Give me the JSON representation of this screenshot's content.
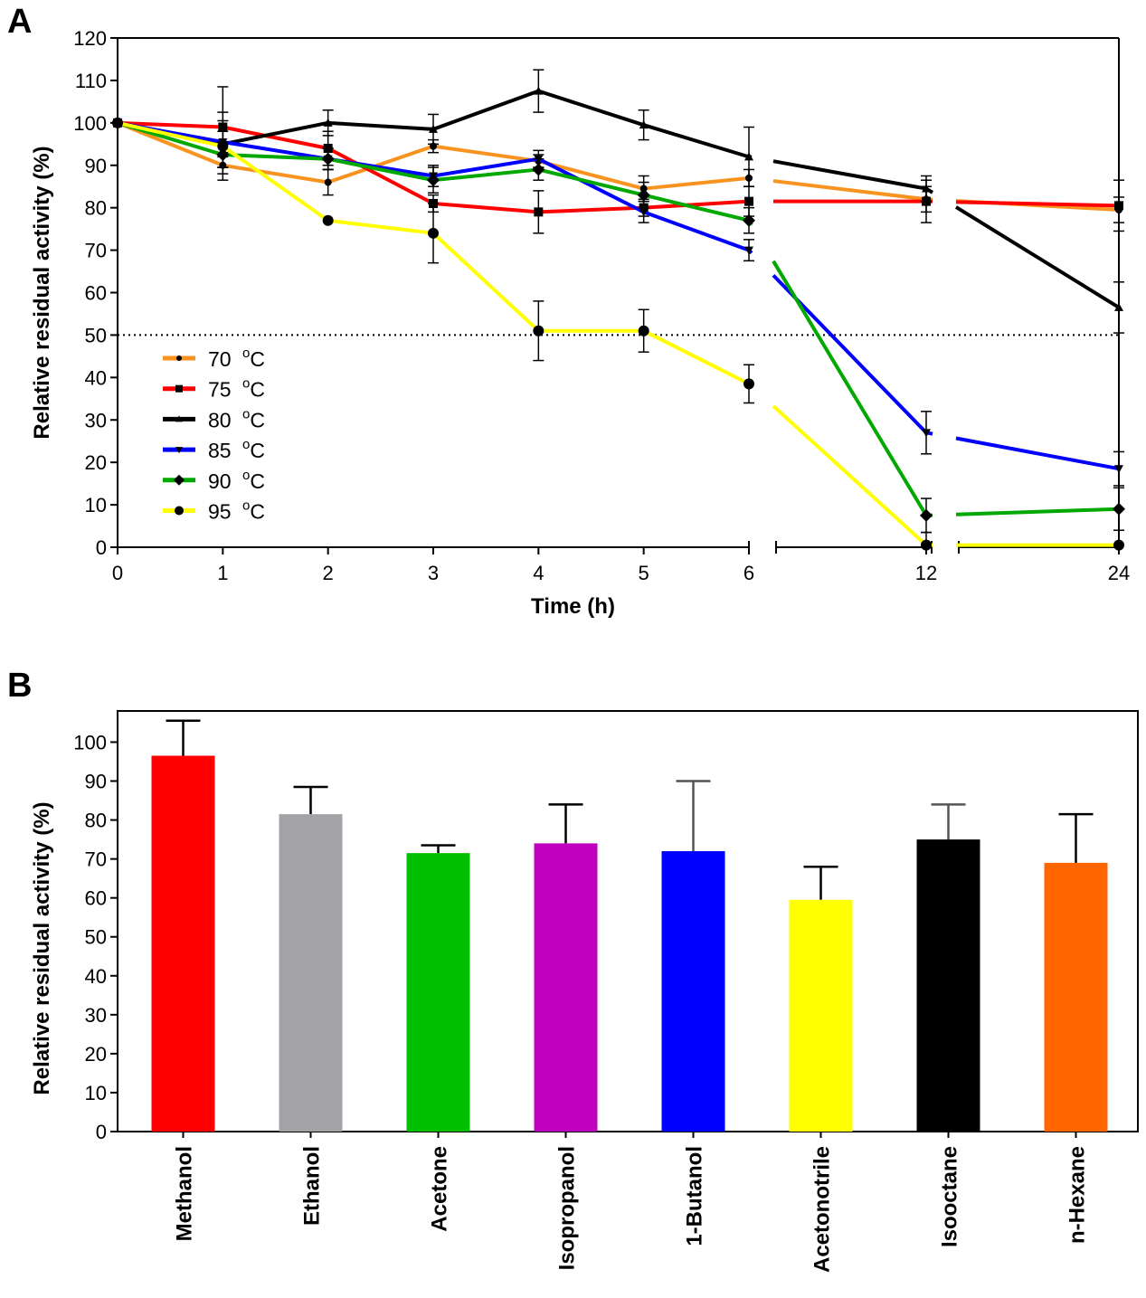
{
  "chart_data": [
    {
      "panel": "A",
      "type": "line",
      "title": "",
      "xlabel": "Time (h)",
      "ylabel": "Relative residual activity (%)",
      "x": [
        0,
        1,
        2,
        3,
        4,
        5,
        6,
        12,
        24
      ],
      "x_tick_labels": [
        "0",
        "1",
        "2",
        "3",
        "4",
        "5",
        "6",
        "12",
        "24"
      ],
      "ylim": [
        0,
        120
      ],
      "y_ticks": [
        0,
        10,
        20,
        30,
        40,
        50,
        60,
        70,
        80,
        90,
        100,
        110,
        120
      ],
      "reference_line": 50,
      "axis_breaks": [
        "6-12",
        "12-24"
      ],
      "legend_position": "bottom-left",
      "series": [
        {
          "name": "70 oC",
          "label": "70",
          "unit": "C",
          "unit_sup": "o",
          "color": "#F7931E",
          "marker": "hexagon",
          "values": [
            100,
            90,
            86,
            94.5,
            91,
            84.5,
            87,
            82,
            79.5
          ],
          "errors": [
            0,
            2,
            3,
            1.5,
            1.5,
            3,
            2,
            3,
            3
          ]
        },
        {
          "name": "75 oC",
          "label": "75",
          "unit": "C",
          "unit_sup": "o",
          "color": "#FF0000",
          "marker": "square",
          "values": [
            100,
            99,
            94,
            81,
            79,
            80,
            81.5,
            81.5,
            80.5
          ],
          "errors": [
            0,
            9.5,
            4,
            2,
            5,
            2,
            3.5,
            5,
            6
          ]
        },
        {
          "name": "80 oC",
          "label": "80",
          "unit": "C",
          "unit_sup": "o",
          "color": "#000000",
          "marker": "triangle-up",
          "values": [
            100,
            95,
            100,
            98.5,
            107.5,
            99.5,
            92,
            84.5,
            56.5
          ],
          "errors": [
            0,
            5.5,
            3,
            3.5,
            5,
            3.5,
            7,
            3,
            6
          ]
        },
        {
          "name": "85 oC",
          "label": "85",
          "unit": "C",
          "unit_sup": "o",
          "color": "#0000FF",
          "marker": "triangle-down",
          "values": [
            100,
            95.5,
            91.5,
            87.5,
            91.5,
            79,
            70,
            27,
            18.5
          ],
          "errors": [
            0,
            2.5,
            2.5,
            2.5,
            2,
            2.5,
            2.5,
            5,
            4
          ]
        },
        {
          "name": "90 oC",
          "label": "90",
          "unit": "C",
          "unit_sup": "o",
          "color": "#00A800",
          "marker": "diamond",
          "values": [
            100,
            92.5,
            91.5,
            86.5,
            89,
            83,
            77,
            7.5,
            9
          ],
          "errors": [
            0,
            3,
            2.5,
            3,
            2.5,
            3,
            3,
            4,
            5
          ]
        },
        {
          "name": "95 oC",
          "label": "95",
          "unit": "C",
          "unit_sup": "o",
          "color": "#FFFF00",
          "marker": "circle",
          "values": [
            100,
            94.5,
            77,
            74,
            51,
            51,
            38.5,
            0.5,
            0.5
          ],
          "errors": [
            0,
            8,
            0,
            7,
            7,
            5,
            4.5,
            3,
            0
          ]
        }
      ]
    },
    {
      "panel": "B",
      "type": "bar",
      "title": "",
      "xlabel": "",
      "ylabel": "Relative residual activity (%)",
      "ylim": [
        0,
        108
      ],
      "y_ticks": [
        0,
        10,
        20,
        30,
        40,
        50,
        60,
        70,
        80,
        90,
        100
      ],
      "categories": [
        "Methanol",
        "Ethanol",
        "Acetone",
        "Isopropanol",
        "1-Butanol",
        "Acetonotrile",
        "Isooctane",
        "n-Hexane"
      ],
      "values": [
        96.5,
        81.5,
        71.5,
        74,
        72,
        59.5,
        75,
        69
      ],
      "errors": [
        9,
        7,
        2,
        10,
        18,
        8.5,
        9,
        12.5
      ],
      "colors": [
        "#FF0000",
        "#A3A3A7",
        "#00BF00",
        "#BF00BF",
        "#0000FF",
        "#FFFF00",
        "#000000",
        "#FF6600"
      ]
    }
  ],
  "panels": {
    "a_label": "A",
    "b_label": "B"
  }
}
